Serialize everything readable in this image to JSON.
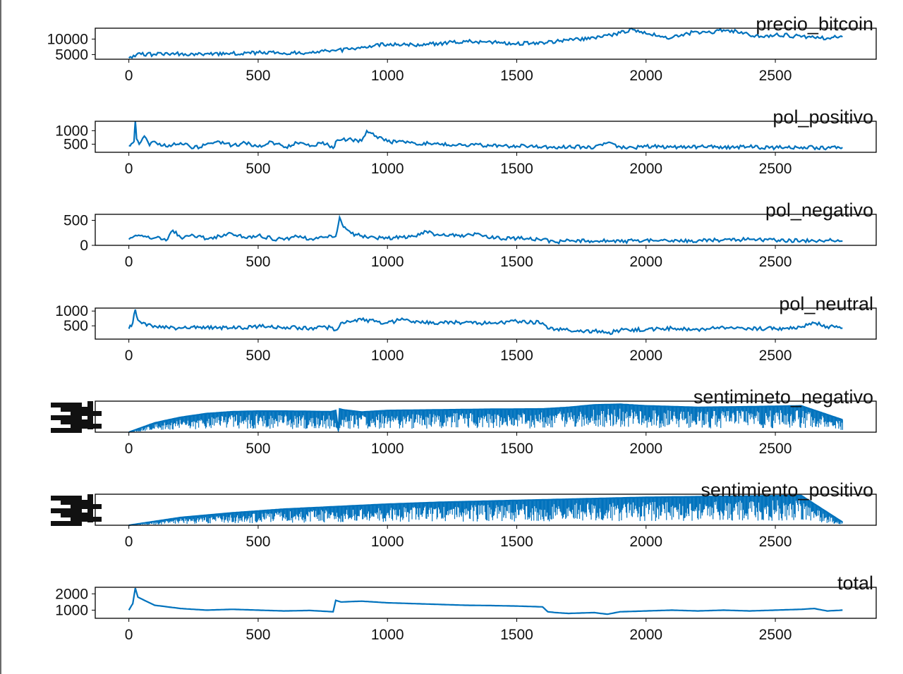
{
  "figure": {
    "line_color": "#0072bd",
    "axis_color": "#000000"
  },
  "chart_data": [
    {
      "type": "line",
      "title": "precio_bitcoin",
      "xlim": [
        -130,
        2890
      ],
      "ylim": [
        3500,
        13500
      ],
      "xticks": [
        0,
        500,
        1000,
        1500,
        2000,
        2500
      ],
      "yticks": [
        5000,
        10000
      ],
      "ytick_labels": [
        "5000",
        "10000"
      ],
      "series": [
        {
          "x": [
            0,
            30,
            100,
            200,
            300,
            400,
            500,
            600,
            700,
            800,
            850,
            900,
            950,
            1000,
            1100,
            1200,
            1300,
            1400,
            1500,
            1600,
            1700,
            1800,
            1850,
            1900,
            1950,
            1975,
            2000,
            2050,
            2100,
            2150,
            2200,
            2250,
            2300,
            2350,
            2400,
            2450,
            2500,
            2550,
            2600,
            2650,
            2700,
            2760
          ],
          "y": [
            3900,
            5000,
            5100,
            5200,
            5300,
            5400,
            5600,
            5500,
            5700,
            6200,
            6700,
            7500,
            7900,
            8300,
            8100,
            8600,
            9200,
            9100,
            8500,
            8900,
            9600,
            10400,
            11200,
            12000,
            13000,
            12200,
            11700,
            11100,
            10400,
            11700,
            12300,
            12100,
            12900,
            12600,
            11200,
            10700,
            11400,
            11200,
            10700,
            10500,
            10300,
            10700
          ]
        }
      ]
    },
    {
      "type": "line",
      "title": "pol_positivo",
      "xlim": [
        -130,
        2890
      ],
      "ylim": [
        200,
        1350
      ],
      "xticks": [
        0,
        500,
        1000,
        1500,
        2000,
        2500
      ],
      "yticks": [
        500,
        1000
      ],
      "ytick_labels": [
        "500",
        "1000"
      ],
      "series": [
        {
          "x": [
            0,
            10,
            20,
            25,
            30,
            40,
            60,
            80,
            100,
            150,
            200,
            250,
            300,
            350,
            400,
            450,
            500,
            550,
            600,
            650,
            700,
            750,
            790,
            800,
            820,
            850,
            900,
            920,
            950,
            1000,
            1100,
            1200,
            1300,
            1400,
            1500,
            1600,
            1650,
            1700,
            1800,
            1850,
            1900,
            1950,
            2000,
            2100,
            2200,
            2300,
            2400,
            2500,
            2600,
            2700,
            2760
          ],
          "y": [
            450,
            520,
            600,
            1350,
            700,
            500,
            800,
            450,
            600,
            400,
            550,
            350,
            500,
            600,
            450,
            550,
            400,
            600,
            380,
            550,
            420,
            580,
            350,
            600,
            650,
            700,
            620,
            1000,
            800,
            600,
            550,
            500,
            480,
            450,
            430,
            400,
            350,
            420,
            380,
            550,
            400,
            380,
            420,
            390,
            410,
            380,
            400,
            370,
            390,
            360,
            380
          ]
        }
      ]
    },
    {
      "type": "line",
      "title": "pol_negativo",
      "xlim": [
        -130,
        2890
      ],
      "ylim": [
        0,
        620
      ],
      "xticks": [
        0,
        500,
        1000,
        1500,
        2000,
        2500
      ],
      "yticks": [
        0,
        500
      ],
      "ytick_labels": [
        "0",
        "500"
      ],
      "series": [
        {
          "x": [
            0,
            20,
            50,
            100,
            150,
            170,
            200,
            250,
            300,
            350,
            400,
            450,
            500,
            550,
            600,
            650,
            700,
            750,
            800,
            815,
            825,
            840,
            860,
            900,
            950,
            1000,
            1100,
            1150,
            1200,
            1300,
            1350,
            1400,
            1500,
            1600,
            1650,
            1700,
            1800,
            1850,
            1900,
            1950,
            2000,
            2100,
            2200,
            2300,
            2400,
            2500,
            2600,
            2700,
            2760
          ],
          "y": [
            120,
            180,
            200,
            150,
            120,
            300,
            160,
            200,
            130,
            190,
            230,
            150,
            200,
            140,
            110,
            180,
            130,
            160,
            180,
            560,
            420,
            330,
            240,
            190,
            160,
            140,
            180,
            280,
            200,
            190,
            240,
            150,
            140,
            120,
            60,
            110,
            80,
            100,
            70,
            90,
            110,
            100,
            90,
            110,
            120,
            100,
            90,
            100,
            85
          ]
        }
      ]
    },
    {
      "type": "line",
      "title": "pol_neutral",
      "xlim": [
        -130,
        2890
      ],
      "ylim": [
        50,
        1100
      ],
      "xticks": [
        0,
        500,
        1000,
        1500,
        2000,
        2500
      ],
      "yticks": [
        500,
        1000
      ],
      "ytick_labels": [
        "500",
        "1000"
      ],
      "series": [
        {
          "x": [
            0,
            15,
            25,
            35,
            50,
            100,
            150,
            200,
            300,
            400,
            500,
            600,
            700,
            780,
            800,
            820,
            850,
            900,
            950,
            1000,
            1050,
            1100,
            1200,
            1300,
            1400,
            1500,
            1600,
            1620,
            1650,
            1700,
            1800,
            1850,
            1900,
            2000,
            2100,
            2200,
            2300,
            2400,
            2500,
            2600,
            2650,
            2700,
            2760
          ],
          "y": [
            400,
            600,
            1050,
            700,
            580,
            500,
            450,
            420,
            450,
            420,
            480,
            450,
            420,
            450,
            350,
            600,
            650,
            700,
            650,
            600,
            700,
            650,
            600,
            620,
            580,
            650,
            600,
            400,
            380,
            350,
            320,
            250,
            350,
            380,
            420,
            380,
            450,
            420,
            400,
            450,
            600,
            480,
            420
          ]
        }
      ]
    },
    {
      "type": "line",
      "title": "sentimineto_negativo",
      "xlim": [
        -130,
        2890
      ],
      "ylim": [
        0,
        100
      ],
      "xticks": [
        0,
        500,
        1000,
        1500,
        2000,
        2500
      ],
      "yticks": [],
      "ytick_labels": [],
      "series": [
        {
          "x": [
            0,
            100,
            200,
            300,
            400,
            500,
            600,
            700,
            780,
            800,
            810,
            815,
            830,
            900,
            1000,
            1200,
            1400,
            1600,
            1700,
            1800,
            1900,
            2000,
            2200,
            2400,
            2600,
            2760
          ],
          "y": [
            0,
            30,
            48,
            60,
            66,
            68,
            68,
            67,
            66,
            70,
            5,
            75,
            72,
            65,
            70,
            72,
            74,
            75,
            80,
            88,
            90,
            85,
            80,
            82,
            85,
            40
          ]
        }
      ]
    },
    {
      "type": "line",
      "title": "sentimiento_positivo",
      "xlim": [
        -130,
        2890
      ],
      "ylim": [
        0,
        100
      ],
      "xticks": [
        0,
        500,
        1000,
        1500,
        2000,
        2500
      ],
      "yticks": [],
      "ytick_labels": [],
      "series": [
        {
          "x": [
            0,
            200,
            400,
            600,
            800,
            1000,
            1200,
            1400,
            1600,
            1800,
            2000,
            2200,
            2400,
            2600,
            2760
          ],
          "y": [
            0,
            25,
            40,
            52,
            60,
            68,
            74,
            78,
            82,
            86,
            90,
            92,
            94,
            96,
            10
          ]
        }
      ]
    },
    {
      "type": "line",
      "title": "total",
      "xlim": [
        -130,
        2890
      ],
      "ylim": [
        500,
        2400
      ],
      "xticks": [
        0,
        500,
        1000,
        1500,
        2000,
        2500
      ],
      "yticks": [
        1000,
        2000
      ],
      "ytick_labels": [
        "1000",
        "2000"
      ],
      "series": [
        {
          "x": [
            0,
            15,
            25,
            35,
            60,
            100,
            150,
            200,
            300,
            400,
            500,
            600,
            700,
            790,
            800,
            820,
            900,
            1000,
            1100,
            1200,
            1300,
            1400,
            1500,
            1600,
            1620,
            1650,
            1700,
            1800,
            1850,
            1900,
            2000,
            2100,
            2200,
            2300,
            2400,
            2500,
            2600,
            2650,
            2700,
            2760
          ],
          "y": [
            1000,
            1400,
            2350,
            1800,
            1600,
            1300,
            1200,
            1100,
            1000,
            1050,
            1000,
            950,
            980,
            900,
            1600,
            1500,
            1550,
            1450,
            1400,
            1350,
            1300,
            1280,
            1250,
            1200,
            900,
            850,
            800,
            850,
            750,
            900,
            950,
            1000,
            950,
            1000,
            950,
            1000,
            1050,
            1100,
            950,
            1000
          ]
        }
      ]
    }
  ]
}
